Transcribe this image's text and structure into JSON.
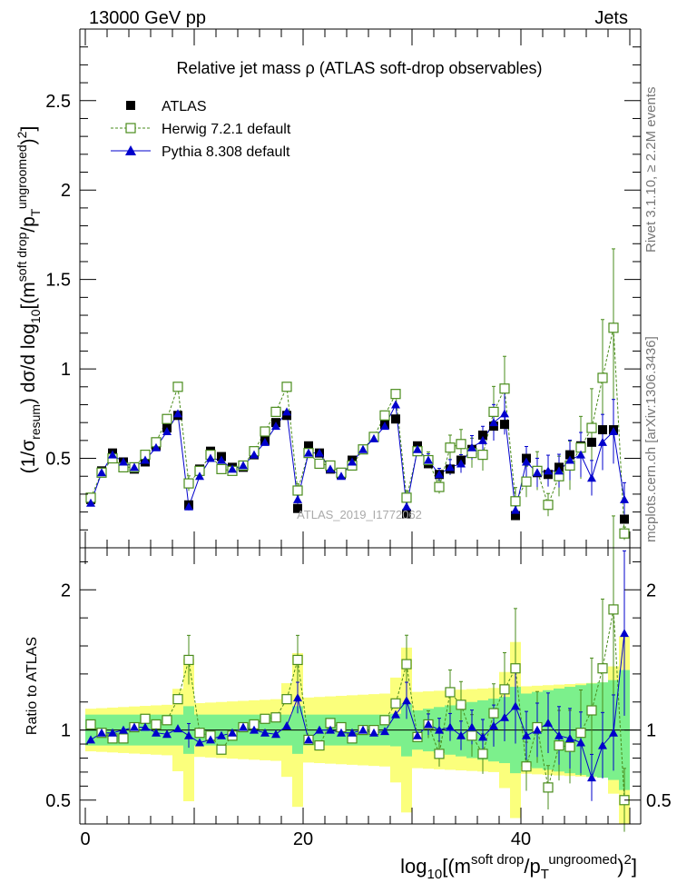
{
  "header": {
    "left": "13000 GeV pp",
    "right": "Jets"
  },
  "side": {
    "rivet": "Rivet 3.1.10, ≥ 2.2M events",
    "mcplots": "mcplots.cern.ch [arXiv:1306.3436]"
  },
  "colors": {
    "data": "#000000",
    "herwig": "#4a8c1c",
    "pythia": "#0000cc",
    "band_green": "#7cf08c",
    "band_yellow": "#fbff7c"
  },
  "chart_data": [
    {
      "type": "scatter",
      "title": "Relative jet mass  ρ (ATLAS soft-drop observables)",
      "ylabel": "(1/σresum) dσ/d log10[(m^soft drop/pT^ungroomed)²]",
      "xlabel": "log10[(m^soft drop/pT^ungroomed)²]",
      "xlim": [
        -0.5,
        51
      ],
      "ylim": [
        0,
        2.9
      ],
      "yticks": [
        0.5,
        1,
        1.5,
        2,
        2.5
      ],
      "xticks": [
        0,
        20,
        40
      ],
      "watermark": "ATLAS_2019_I1772062",
      "legend_position": "top-left",
      "x": [
        0.5,
        1.5,
        2.5,
        3.5,
        4.5,
        5.5,
        6.5,
        7.5,
        8.5,
        9.5,
        10.5,
        11.5,
        12.5,
        13.5,
        14.5,
        15.5,
        16.5,
        17.5,
        18.5,
        19.5,
        20.5,
        21.5,
        22.5,
        23.5,
        24.5,
        25.5,
        26.5,
        27.5,
        28.5,
        29.5,
        30.5,
        31.5,
        32.5,
        33.5,
        34.5,
        35.5,
        36.5,
        37.5,
        38.5,
        39.5,
        40.5,
        41.5,
        42.5,
        43.5,
        44.5,
        45.5,
        46.5,
        47.5,
        48.5,
        49.5
      ],
      "series": [
        {
          "name": "ATLAS",
          "marker": "filled-square",
          "values": [
            0.27,
            0.43,
            0.53,
            0.48,
            0.44,
            0.48,
            0.57,
            0.67,
            0.74,
            0.24,
            0.44,
            0.54,
            0.51,
            0.45,
            0.45,
            0.52,
            0.6,
            0.7,
            0.74,
            0.22,
            0.57,
            0.53,
            0.44,
            0.41,
            0.49,
            0.55,
            0.62,
            0.69,
            0.72,
            0.19,
            0.57,
            0.47,
            0.41,
            0.44,
            0.49,
            0.55,
            0.63,
            0.68,
            0.69,
            0.18,
            0.5,
            0.42,
            0.41,
            0.45,
            0.52,
            0.57,
            0.59,
            0.66,
            0.66,
            0.16
          ]
        },
        {
          "name": "Herwig 7.2.1 default",
          "marker": "open-square",
          "line": "dashed",
          "values": [
            0.28,
            0.42,
            0.5,
            0.45,
            0.45,
            0.52,
            0.59,
            0.72,
            0.9,
            0.36,
            0.43,
            0.52,
            0.44,
            0.43,
            0.46,
            0.54,
            0.65,
            0.76,
            0.9,
            0.32,
            0.53,
            0.47,
            0.46,
            0.42,
            0.46,
            0.55,
            0.62,
            0.74,
            0.86,
            0.28,
            0.54,
            0.49,
            0.34,
            0.56,
            0.58,
            0.53,
            0.52,
            0.76,
            0.89,
            0.26,
            0.37,
            0.43,
            0.24,
            0.4,
            0.46,
            0.56,
            0.67,
            0.95,
            1.23,
            0.08
          ]
        },
        {
          "name": "Pythia 8.308 default",
          "marker": "filled-triangle",
          "line": "solid",
          "values": [
            0.25,
            0.42,
            0.52,
            0.48,
            0.45,
            0.49,
            0.56,
            0.65,
            0.75,
            0.23,
            0.4,
            0.5,
            0.49,
            0.44,
            0.46,
            0.52,
            0.59,
            0.68,
            0.76,
            0.27,
            0.53,
            0.53,
            0.44,
            0.4,
            0.48,
            0.55,
            0.61,
            0.68,
            0.8,
            0.23,
            0.55,
            0.49,
            0.41,
            0.45,
            0.47,
            0.56,
            0.6,
            0.7,
            0.75,
            0.21,
            0.48,
            0.42,
            0.43,
            0.43,
            0.49,
            0.52,
            0.39,
            0.59,
            0.65,
            0.27
          ]
        }
      ]
    },
    {
      "type": "scatter",
      "ylabel": "Ratio to ATLAS",
      "ylim": [
        0.33,
        2.3
      ],
      "yticks": [
        0.5,
        1,
        2
      ],
      "x": [
        0.5,
        1.5,
        2.5,
        3.5,
        4.5,
        5.5,
        6.5,
        7.5,
        8.5,
        9.5,
        10.5,
        11.5,
        12.5,
        13.5,
        14.5,
        15.5,
        16.5,
        17.5,
        18.5,
        19.5,
        20.5,
        21.5,
        22.5,
        23.5,
        24.5,
        25.5,
        26.5,
        27.5,
        28.5,
        29.5,
        30.5,
        31.5,
        32.5,
        33.5,
        34.5,
        35.5,
        36.5,
        37.5,
        38.5,
        39.5,
        40.5,
        41.5,
        42.5,
        43.5,
        44.5,
        45.5,
        46.5,
        47.5,
        48.5,
        49.5
      ],
      "series": [
        {
          "name": "Herwig 7.2.1 default",
          "values": [
            1.04,
            0.98,
            0.94,
            0.94,
            1.02,
            1.08,
            1.04,
            1.07,
            1.22,
            1.5,
            0.98,
            0.96,
            0.86,
            0.96,
            1.02,
            1.04,
            1.08,
            1.09,
            1.22,
            1.5,
            0.93,
            0.89,
            1.05,
            1.02,
            0.94,
            1.0,
            1.0,
            1.07,
            1.19,
            1.47,
            0.95,
            1.04,
            0.83,
            1.27,
            1.18,
            0.96,
            0.83,
            1.12,
            1.29,
            1.44,
            0.74,
            1.02,
            0.59,
            0.89,
            0.88,
            0.98,
            1.14,
            1.44,
            1.86,
            0.5
          ]
        },
        {
          "name": "Pythia 8.308 default",
          "values": [
            0.93,
            0.98,
            0.98,
            1.0,
            1.02,
            1.02,
            0.98,
            0.97,
            1.01,
            0.96,
            0.91,
            0.93,
            0.96,
            0.98,
            1.02,
            1.0,
            0.98,
            0.97,
            1.03,
            1.23,
            0.93,
            1.0,
            1.0,
            0.98,
            0.98,
            1.0,
            0.98,
            0.99,
            1.11,
            1.21,
            0.96,
            1.04,
            1.0,
            1.02,
            0.96,
            1.02,
            0.95,
            1.03,
            1.09,
            1.17,
            0.96,
            1.0,
            1.05,
            0.96,
            0.94,
            0.91,
            0.66,
            0.89,
            0.98,
            1.69
          ]
        }
      ]
    }
  ]
}
